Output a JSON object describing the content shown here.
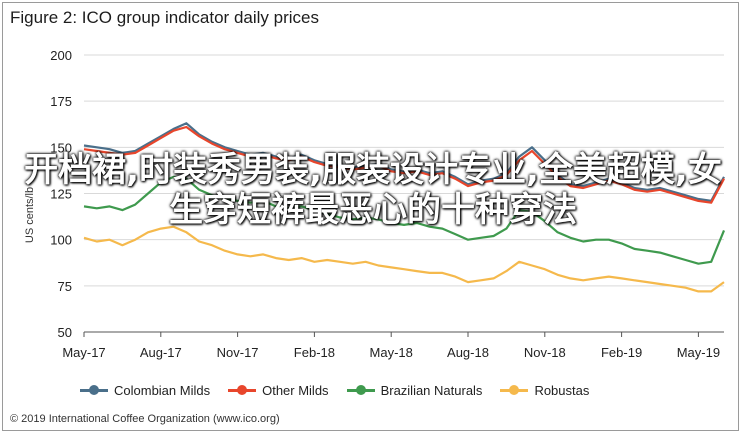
{
  "chart_data": {
    "type": "line",
    "title": "Figure 2: ICO group indicator daily prices",
    "ylabel": "US cents/lb",
    "ylim": [
      50,
      200
    ],
    "yticks": [
      "50",
      "75",
      "100",
      "125",
      "150",
      "175",
      "200"
    ],
    "grid": true,
    "legend_position": "bottom",
    "xticks": [
      "May-17",
      "Aug-17",
      "Nov-17",
      "Feb-18",
      "May-18",
      "Aug-18",
      "Nov-18",
      "Feb-19",
      "May-19"
    ],
    "x": [
      0,
      0.5,
      1,
      1.5,
      2,
      2.5,
      3,
      3.5,
      4,
      4.5,
      5,
      5.5,
      6,
      6.5,
      7,
      7.5,
      8,
      8.5,
      9,
      9.5,
      10,
      10.5,
      11,
      11.5,
      12,
      12.5,
      13,
      13.5,
      14,
      14.5,
      15,
      15.5,
      16,
      16.5,
      17,
      17.5,
      18,
      18.5,
      19,
      19.5,
      20,
      20.5,
      21,
      21.5,
      22,
      22.5,
      23,
      23.5,
      24,
      24.5,
      25
    ],
    "series": [
      {
        "name": "Colombian Milds",
        "color": "#4a6f8a",
        "values": [
          151,
          150,
          149,
          147,
          148,
          152,
          156,
          160,
          163,
          157,
          153,
          150,
          148,
          146,
          147,
          145,
          144,
          146,
          143,
          141,
          140,
          139,
          140,
          141,
          138,
          137,
          138,
          136,
          137,
          134,
          130,
          132,
          133,
          136,
          145,
          150,
          143,
          135,
          130,
          129,
          131,
          133,
          131,
          128,
          127,
          128,
          126,
          124,
          122,
          121,
          134
        ]
      },
      {
        "name": "Other Milds",
        "color": "#e8462c",
        "values": [
          149,
          148,
          147,
          146,
          147,
          151,
          155,
          159,
          161,
          156,
          152,
          149,
          147,
          145,
          146,
          144,
          143,
          145,
          142,
          140,
          139,
          138,
          139,
          140,
          137,
          136,
          137,
          135,
          136,
          133,
          129,
          131,
          132,
          135,
          143,
          148,
          141,
          134,
          129,
          128,
          130,
          132,
          130,
          127,
          126,
          127,
          125,
          123,
          121,
          120,
          133
        ]
      },
      {
        "name": "Brazilian Naturals",
        "color": "#3f9a4e",
        "values": [
          118,
          117,
          118,
          116,
          119,
          125,
          131,
          134,
          133,
          127,
          124,
          122,
          121,
          120,
          121,
          118,
          117,
          118,
          116,
          114,
          112,
          111,
          112,
          111,
          109,
          108,
          109,
          107,
          106,
          103,
          100,
          101,
          102,
          106,
          116,
          115,
          110,
          104,
          101,
          99,
          100,
          100,
          98,
          95,
          94,
          93,
          91,
          89,
          87,
          88,
          105
        ]
      },
      {
        "name": "Robustas",
        "color": "#f5b94c",
        "values": [
          101,
          99,
          100,
          97,
          100,
          104,
          106,
          107,
          104,
          99,
          97,
          94,
          92,
          91,
          92,
          90,
          89,
          90,
          88,
          89,
          88,
          87,
          88,
          86,
          85,
          84,
          83,
          82,
          82,
          80,
          77,
          78,
          79,
          83,
          88,
          86,
          84,
          81,
          79,
          78,
          79,
          80,
          79,
          78,
          77,
          76,
          75,
          74,
          72,
          72,
          77
        ]
      }
    ]
  },
  "overlay_text": "开档裙,时装秀男装,服装设计专业,全美超模,女生穿短裤最恶心的十种穿法",
  "source": "© 2019 International Coffee Organization (www.ico.org)"
}
